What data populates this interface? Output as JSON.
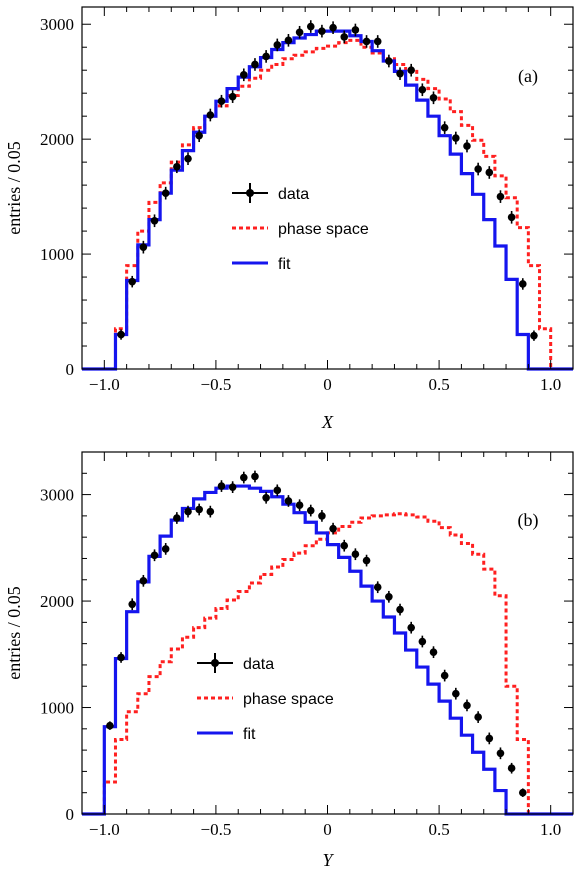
{
  "chart_data": [
    {
      "type": "line",
      "panel_label": "(a)",
      "xlabel": "X",
      "ylabel": "entries / 0.05",
      "xlim": [
        -1.1,
        1.1
      ],
      "ylim": [
        0,
        3150
      ],
      "xticks": [
        -1.0,
        -0.5,
        0,
        0.5,
        1.0
      ],
      "xtick_labels": [
        "−1.0",
        "−0.5",
        "0",
        "0.5",
        "1.0"
      ],
      "yticks": [
        0,
        1000,
        2000,
        3000
      ],
      "ytick_labels": [
        "0",
        "1000",
        "2000",
        "3000"
      ],
      "legend_placement": "center-left",
      "bin_edges": [
        -1.1,
        -1.05,
        -1.0,
        -0.95,
        -0.9,
        -0.85,
        -0.8,
        -0.75,
        -0.7,
        -0.65,
        -0.6,
        -0.55,
        -0.5,
        -0.45,
        -0.4,
        -0.35,
        -0.3,
        -0.25,
        -0.2,
        -0.15,
        -0.1,
        -0.05,
        0.0,
        0.05,
        0.1,
        0.15,
        0.2,
        0.25,
        0.3,
        0.35,
        0.4,
        0.45,
        0.5,
        0.55,
        0.6,
        0.65,
        0.7,
        0.75,
        0.8,
        0.85,
        0.9,
        0.95,
        1.0,
        1.05,
        1.1
      ],
      "series": [
        {
          "name": "data",
          "kind": "points",
          "color": "#000000",
          "x": [
            -0.925,
            -0.875,
            -0.825,
            -0.775,
            -0.725,
            -0.675,
            -0.625,
            -0.575,
            -0.525,
            -0.475,
            -0.425,
            -0.375,
            -0.325,
            -0.275,
            -0.225,
            -0.175,
            -0.125,
            -0.075,
            -0.025,
            0.025,
            0.075,
            0.125,
            0.175,
            0.225,
            0.275,
            0.325,
            0.375,
            0.425,
            0.475,
            0.525,
            0.575,
            0.625,
            0.675,
            0.725,
            0.775,
            0.825,
            0.875,
            0.925
          ],
          "values": [
            300,
            760,
            1060,
            1290,
            1530,
            1760,
            1830,
            2030,
            2210,
            2330,
            2370,
            2560,
            2650,
            2720,
            2820,
            2860,
            2930,
            2980,
            2940,
            2970,
            2890,
            2950,
            2850,
            2850,
            2680,
            2570,
            2600,
            2430,
            2360,
            2100,
            2010,
            1940,
            1740,
            1710,
            1500,
            1320,
            740,
            290
          ],
          "errors": [
            45,
            50,
            55,
            55,
            55,
            55,
            55,
            55,
            55,
            55,
            55,
            55,
            55,
            55,
            55,
            55,
            55,
            55,
            55,
            55,
            55,
            55,
            55,
            55,
            55,
            55,
            55,
            55,
            55,
            55,
            55,
            55,
            55,
            55,
            55,
            55,
            50,
            45
          ]
        },
        {
          "name": "phase space",
          "kind": "step",
          "style": "dashed",
          "color": "#ff2020",
          "values": [
            0,
            0,
            0,
            350,
            900,
            1200,
            1450,
            1620,
            1800,
            1950,
            2100,
            2200,
            2290,
            2380,
            2460,
            2530,
            2600,
            2650,
            2700,
            2730,
            2760,
            2790,
            2810,
            2840,
            2860,
            2800,
            2750,
            2700,
            2650,
            2590,
            2520,
            2440,
            2350,
            2240,
            2120,
            1990,
            1850,
            1680,
            1490,
            1230,
            900,
            350,
            0,
            0
          ]
        },
        {
          "name": "fit",
          "kind": "step",
          "style": "solid",
          "color": "#1515ee",
          "values": [
            0,
            0,
            0,
            300,
            770,
            1080,
            1300,
            1530,
            1730,
            1900,
            2060,
            2200,
            2330,
            2440,
            2540,
            2630,
            2710,
            2780,
            2840,
            2880,
            2910,
            2940,
            2940,
            2940,
            2900,
            2850,
            2770,
            2680,
            2590,
            2470,
            2340,
            2200,
            2030,
            1870,
            1700,
            1520,
            1300,
            1070,
            780,
            300,
            0,
            0,
            0,
            0
          ]
        }
      ]
    },
    {
      "type": "line",
      "panel_label": "(b)",
      "xlabel": "Y",
      "ylabel": "entries / 0.05",
      "xlim": [
        -1.1,
        1.1
      ],
      "ylim": [
        0,
        3400
      ],
      "xticks": [
        -1.0,
        -0.5,
        0,
        0.5,
        1.0
      ],
      "xtick_labels": [
        "−1.0",
        "−0.5",
        "0",
        "0.5",
        "1.0"
      ],
      "yticks": [
        0,
        1000,
        2000,
        3000
      ],
      "ytick_labels": [
        "0",
        "1000",
        "2000",
        "3000"
      ],
      "legend_placement": "center-left",
      "bin_edges": [
        -1.1,
        -1.05,
        -1.0,
        -0.95,
        -0.9,
        -0.85,
        -0.8,
        -0.75,
        -0.7,
        -0.65,
        -0.6,
        -0.55,
        -0.5,
        -0.45,
        -0.4,
        -0.35,
        -0.3,
        -0.25,
        -0.2,
        -0.15,
        -0.1,
        -0.05,
        0.0,
        0.05,
        0.1,
        0.15,
        0.2,
        0.25,
        0.3,
        0.35,
        0.4,
        0.45,
        0.5,
        0.55,
        0.6,
        0.65,
        0.7,
        0.75,
        0.8,
        0.85,
        0.9,
        0.95,
        1.0,
        1.05,
        1.1
      ],
      "series": [
        {
          "name": "data",
          "kind": "points",
          "color": "#000000",
          "x": [
            -0.975,
            -0.925,
            -0.875,
            -0.825,
            -0.775,
            -0.725,
            -0.675,
            -0.625,
            -0.575,
            -0.525,
            -0.475,
            -0.425,
            -0.375,
            -0.325,
            -0.275,
            -0.225,
            -0.175,
            -0.125,
            -0.075,
            -0.025,
            0.025,
            0.075,
            0.125,
            0.175,
            0.225,
            0.275,
            0.325,
            0.375,
            0.425,
            0.475,
            0.525,
            0.575,
            0.625,
            0.675,
            0.725,
            0.775,
            0.825,
            0.875
          ],
          "values": [
            830,
            1470,
            1970,
            2190,
            2430,
            2490,
            2780,
            2840,
            2860,
            2840,
            3080,
            3070,
            3160,
            3170,
            2970,
            3040,
            2940,
            2900,
            2850,
            2800,
            2680,
            2520,
            2440,
            2380,
            2130,
            2040,
            1920,
            1750,
            1620,
            1520,
            1300,
            1130,
            1020,
            910,
            710,
            570,
            430,
            200
          ],
          "errors": [
            40,
            50,
            55,
            55,
            55,
            55,
            55,
            55,
            55,
            55,
            55,
            55,
            55,
            55,
            55,
            55,
            55,
            55,
            55,
            55,
            55,
            55,
            55,
            55,
            55,
            55,
            55,
            55,
            55,
            55,
            55,
            55,
            55,
            55,
            55,
            55,
            50,
            40
          ]
        },
        {
          "name": "phase space",
          "kind": "step",
          "style": "dashed",
          "color": "#ff2020",
          "values": [
            0,
            0,
            300,
            700,
            960,
            1130,
            1290,
            1430,
            1550,
            1660,
            1750,
            1840,
            1930,
            2010,
            2090,
            2170,
            2250,
            2320,
            2390,
            2450,
            2520,
            2580,
            2640,
            2700,
            2740,
            2780,
            2800,
            2810,
            2820,
            2810,
            2790,
            2750,
            2690,
            2620,
            2540,
            2440,
            2300,
            2050,
            1200,
            700,
            0,
            0,
            0,
            0
          ]
        },
        {
          "name": "fit",
          "kind": "step",
          "style": "solid",
          "color": "#1515ee",
          "values": [
            0,
            0,
            820,
            1460,
            1900,
            2180,
            2420,
            2610,
            2760,
            2870,
            2960,
            3020,
            3060,
            3080,
            3080,
            3060,
            3030,
            2980,
            2910,
            2830,
            2740,
            2640,
            2530,
            2410,
            2280,
            2140,
            2000,
            1850,
            1700,
            1540,
            1380,
            1220,
            1060,
            900,
            740,
            580,
            420,
            220,
            0,
            0,
            0,
            0,
            0,
            0
          ]
        }
      ]
    }
  ]
}
